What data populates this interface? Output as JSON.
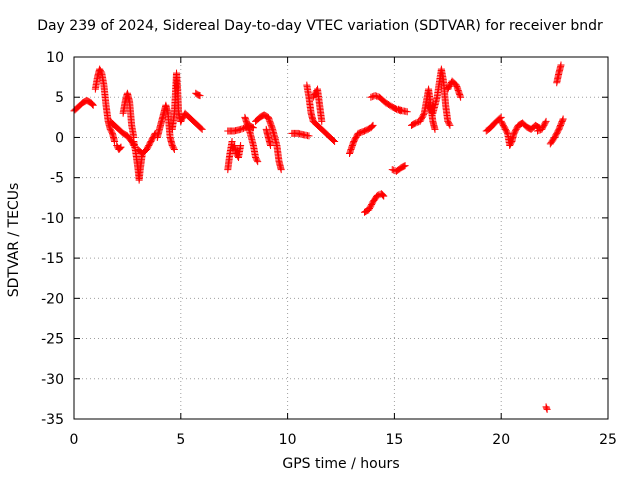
{
  "chart_data": {
    "type": "scatter",
    "title": "Day 239 of 2024, Sidereal Day-to-day VTEC variation (SDTVAR) for receiver bndr",
    "xlabel": "GPS time / hours",
    "ylabel": "SDTVAR / TECUs",
    "xlim": [
      0,
      25
    ],
    "ylim": [
      -35,
      10
    ],
    "xticks": [
      0,
      5,
      10,
      15,
      20,
      25
    ],
    "yticks": [
      10,
      5,
      0,
      -5,
      -10,
      -15,
      -20,
      -25,
      -30,
      -35
    ],
    "grid": true,
    "marker": "+",
    "series": [
      {
        "name": "SDTVAR",
        "color": "#ff0000",
        "segments": [
          [
            [
              0.0,
              3.3
            ],
            [
              0.2,
              3.8
            ],
            [
              0.4,
              4.3
            ],
            [
              0.6,
              4.6
            ],
            [
              0.8,
              4.3
            ],
            [
              0.9,
              4.0
            ]
          ],
          [
            [
              1.0,
              6.0
            ],
            [
              1.1,
              7.5
            ],
            [
              1.2,
              8.5
            ],
            [
              1.3,
              8.0
            ],
            [
              1.4,
              6.5
            ],
            [
              1.5,
              4.0
            ],
            [
              1.6,
              2.0
            ],
            [
              1.7,
              1.0
            ],
            [
              1.8,
              0.5
            ],
            [
              1.9,
              -0.5
            ]
          ],
          [
            [
              1.7,
              2.0
            ],
            [
              1.9,
              1.5
            ],
            [
              2.1,
              1.0
            ],
            [
              2.3,
              0.5
            ],
            [
              2.5,
              0.2
            ],
            [
              2.7,
              -0.5
            ],
            [
              2.8,
              -1.0
            ]
          ],
          [
            [
              2.0,
              -1.0
            ],
            [
              2.1,
              -1.5
            ],
            [
              2.2,
              -1.2
            ]
          ],
          [
            [
              2.3,
              3.0
            ],
            [
              2.4,
              4.5
            ],
            [
              2.5,
              5.5
            ],
            [
              2.6,
              4.5
            ],
            [
              2.7,
              1.5
            ],
            [
              2.8,
              0.0
            ]
          ],
          [
            [
              2.8,
              -0.5
            ],
            [
              2.9,
              -2.0
            ],
            [
              3.0,
              -4.0
            ],
            [
              3.05,
              -5.3
            ],
            [
              3.1,
              -4.0
            ],
            [
              3.2,
              -2.0
            ]
          ],
          [
            [
              3.0,
              -1.5
            ],
            [
              3.2,
              -2.0
            ],
            [
              3.4,
              -1.5
            ],
            [
              3.5,
              -1.0
            ],
            [
              3.6,
              -0.5
            ],
            [
              3.7,
              0.0
            ],
            [
              3.8,
              0.5
            ]
          ],
          [
            [
              3.9,
              0.0
            ],
            [
              4.0,
              1.0
            ],
            [
              4.1,
              2.0
            ],
            [
              4.2,
              3.0
            ],
            [
              4.3,
              4.0
            ],
            [
              4.4,
              3.0
            ],
            [
              4.5,
              0.0
            ],
            [
              4.6,
              -1.0
            ],
            [
              4.7,
              -1.5
            ]
          ],
          [
            [
              4.6,
              1.0
            ],
            [
              4.7,
              3.0
            ],
            [
              4.8,
              8.0
            ],
            [
              4.85,
              6.0
            ],
            [
              4.9,
              3.0
            ],
            [
              5.0,
              2.0
            ]
          ],
          [
            [
              5.0,
              2.0
            ],
            [
              5.2,
              3.0
            ],
            [
              5.4,
              2.5
            ],
            [
              5.6,
              2.0
            ],
            [
              5.8,
              1.5
            ],
            [
              6.0,
              1.0
            ]
          ],
          [
            [
              5.7,
              5.5
            ],
            [
              5.8,
              5.3
            ],
            [
              5.9,
              5.2
            ]
          ],
          [
            [
              7.2,
              0.8
            ],
            [
              7.5,
              0.8
            ],
            [
              7.8,
              1.0
            ],
            [
              8.0,
              1.2
            ],
            [
              8.2,
              1.5
            ],
            [
              8.4,
              1.2
            ]
          ],
          [
            [
              7.2,
              -4.0
            ],
            [
              7.3,
              -2.0
            ],
            [
              7.4,
              -0.5
            ]
          ],
          [
            [
              7.5,
              -1.0
            ],
            [
              7.6,
              -2.0
            ],
            [
              7.7,
              -2.5
            ],
            [
              7.8,
              -1.0
            ]
          ],
          [
            [
              8.0,
              2.5
            ],
            [
              8.2,
              1.0
            ],
            [
              8.4,
              -1.0
            ],
            [
              8.5,
              -2.5
            ],
            [
              8.6,
              -3.0
            ]
          ],
          [
            [
              8.5,
              2.0
            ],
            [
              8.7,
              2.5
            ],
            [
              8.9,
              2.8
            ],
            [
              9.1,
              2.5
            ],
            [
              9.3,
              1.0
            ],
            [
              9.5,
              -1.0
            ],
            [
              9.6,
              -3.0
            ],
            [
              9.7,
              -4.0
            ]
          ],
          [
            [
              9.0,
              1.0
            ],
            [
              9.1,
              0.0
            ],
            [
              9.2,
              -1.0
            ]
          ],
          [
            [
              10.2,
              0.5
            ],
            [
              10.5,
              0.5
            ],
            [
              10.8,
              0.3
            ],
            [
              11.0,
              0.2
            ]
          ],
          [
            [
              10.9,
              6.5
            ],
            [
              11.0,
              5.0
            ],
            [
              11.1,
              3.0
            ],
            [
              11.2,
              2.0
            ],
            [
              11.4,
              1.5
            ],
            [
              11.6,
              1.0
            ],
            [
              11.8,
              0.5
            ],
            [
              12.0,
              0.0
            ],
            [
              12.2,
              -0.5
            ]
          ],
          [
            [
              11.2,
              5.0
            ],
            [
              11.4,
              6.0
            ],
            [
              11.5,
              4.0
            ],
            [
              11.6,
              2.0
            ]
          ],
          [
            [
              12.9,
              -2.0
            ],
            [
              13.1,
              -0.5
            ],
            [
              13.3,
              0.5
            ],
            [
              13.6,
              0.8
            ],
            [
              13.9,
              1.2
            ],
            [
              14.0,
              1.5
            ]
          ],
          [
            [
              13.6,
              -9.3
            ],
            [
              13.8,
              -9.0
            ],
            [
              14.0,
              -8.0
            ],
            [
              14.2,
              -7.2
            ],
            [
              14.4,
              -7.0
            ],
            [
              14.5,
              -7.3
            ]
          ],
          [
            [
              13.9,
              5.0
            ],
            [
              14.1,
              5.2
            ],
            [
              14.3,
              5.0
            ],
            [
              14.6,
              4.3
            ],
            [
              14.9,
              3.8
            ],
            [
              15.1,
              3.5
            ],
            [
              15.3,
              3.3
            ]
          ],
          [
            [
              14.9,
              -4.0
            ],
            [
              15.1,
              -4.2
            ],
            [
              15.3,
              -3.8
            ],
            [
              15.5,
              -3.5
            ]
          ],
          [
            [
              15.2,
              3.5
            ],
            [
              15.4,
              3.3
            ],
            [
              15.6,
              3.2
            ]
          ],
          [
            [
              15.8,
              1.5
            ],
            [
              16.0,
              1.8
            ],
            [
              16.2,
              2.0
            ],
            [
              16.4,
              3.0
            ],
            [
              16.5,
              4.5
            ],
            [
              16.6,
              6.0
            ],
            [
              16.7,
              4.0
            ],
            [
              16.8,
              2.0
            ],
            [
              16.9,
              1.0
            ]
          ],
          [
            [
              16.6,
              4.0
            ],
            [
              16.8,
              3.0
            ],
            [
              17.0,
              5.0
            ],
            [
              17.2,
              8.5
            ],
            [
              17.3,
              7.0
            ],
            [
              17.4,
              4.0
            ],
            [
              17.5,
              2.0
            ],
            [
              17.6,
              1.5
            ]
          ],
          [
            [
              17.5,
              6.0
            ],
            [
              17.7,
              7.0
            ],
            [
              17.9,
              6.5
            ],
            [
              18.1,
              5.0
            ]
          ],
          [
            [
              19.3,
              0.8
            ],
            [
              19.5,
              1.2
            ],
            [
              19.7,
              1.8
            ],
            [
              19.9,
              2.3
            ],
            [
              20.0,
              2.5
            ]
          ],
          [
            [
              20.0,
              2.0
            ],
            [
              20.2,
              1.0
            ],
            [
              20.3,
              0.5
            ],
            [
              20.4,
              -1.0
            ],
            [
              20.5,
              -0.5
            ],
            [
              20.6,
              0.5
            ],
            [
              20.8,
              1.5
            ],
            [
              21.0,
              1.8
            ],
            [
              21.2,
              1.3
            ],
            [
              21.4,
              1.0
            ],
            [
              21.6,
              1.5
            ],
            [
              21.8,
              1.2
            ]
          ],
          [
            [
              21.7,
              0.8
            ],
            [
              21.9,
              1.0
            ],
            [
              22.0,
              1.5
            ],
            [
              22.1,
              2.0
            ]
          ],
          [
            [
              22.3,
              -0.8
            ],
            [
              22.5,
              0.0
            ],
            [
              22.7,
              1.0
            ],
            [
              22.9,
              2.3
            ]
          ],
          [
            [
              22.6,
              6.8
            ],
            [
              22.7,
              8.0
            ],
            [
              22.8,
              9.0
            ]
          ],
          [
            [
              22.1,
              -33.5
            ],
            [
              22.15,
              -33.8
            ]
          ]
        ]
      }
    ]
  }
}
